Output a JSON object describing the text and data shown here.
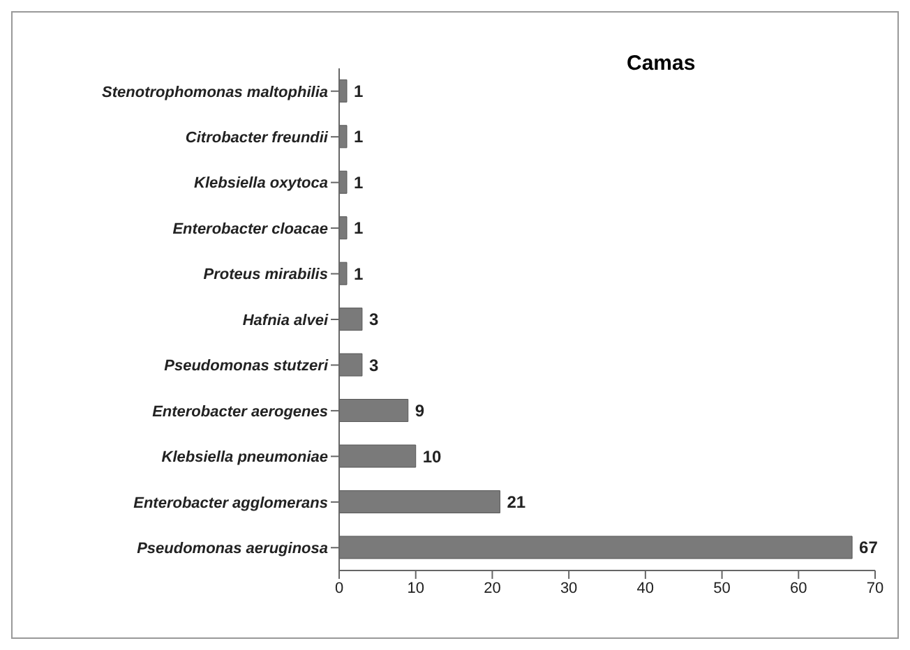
{
  "chart_data": {
    "type": "bar",
    "orientation": "horizontal",
    "title": "Camas",
    "categories": [
      "Stenotrophomonas maltophilia",
      "Citrobacter freundii",
      "Klebsiella oxytoca",
      "Enterobacter cloacae",
      "Proteus mirabilis",
      "Hafnia alvei",
      "Pseudomonas stutzeri",
      "Enterobacter aerogenes",
      "Klebsiella pneumoniae",
      "Enterobacter agglomerans",
      "Pseudomonas aeruginosa"
    ],
    "values": [
      1,
      1,
      1,
      1,
      1,
      3,
      3,
      9,
      10,
      21,
      67
    ],
    "color": "#7a7a7a",
    "xlim": [
      0,
      70
    ],
    "xticks": [
      0,
      10,
      20,
      30,
      40,
      50,
      60,
      70
    ],
    "data_labels": true,
    "grid": false
  }
}
